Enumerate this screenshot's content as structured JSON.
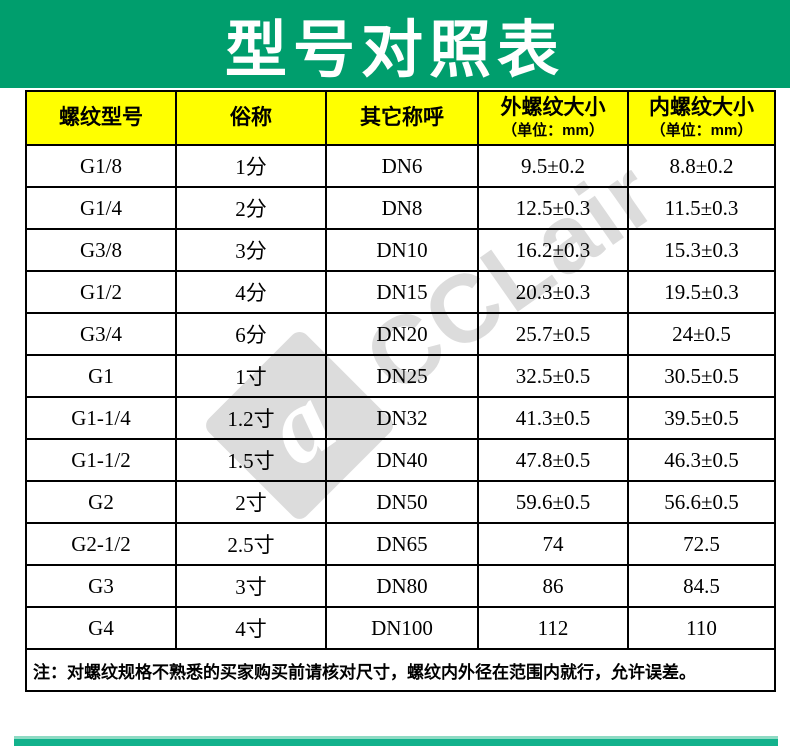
{
  "title": "型号对照表",
  "watermark": {
    "logo_letter": "a",
    "text": "CCLair"
  },
  "colors": {
    "banner_green": "#009E6D",
    "header_yellow": "#FFFF00",
    "bottom_bar_teal": "#12B28C",
    "watermark_gray": "#DCDCDC",
    "border_black": "#000000"
  },
  "table": {
    "headers": [
      {
        "label": "螺纹型号",
        "sub": ""
      },
      {
        "label": "俗称",
        "sub": ""
      },
      {
        "label": "其它称呼",
        "sub": ""
      },
      {
        "label": "外螺纹大小",
        "sub": "（单位：mm）"
      },
      {
        "label": "内螺纹大小",
        "sub": "（单位：mm）"
      }
    ],
    "rows": [
      [
        "G1/8",
        "1分",
        "DN6",
        "9.5±0.2",
        "8.8±0.2"
      ],
      [
        "G1/4",
        "2分",
        "DN8",
        "12.5±0.3",
        "11.5±0.3"
      ],
      [
        "G3/8",
        "3分",
        "DN10",
        "16.2±0.3",
        "15.3±0.3"
      ],
      [
        "G1/2",
        "4分",
        "DN15",
        "20.3±0.3",
        "19.5±0.3"
      ],
      [
        "G3/4",
        "6分",
        "DN20",
        "25.7±0.5",
        "24±0.5"
      ],
      [
        "G1",
        "1寸",
        "DN25",
        "32.5±0.5",
        "30.5±0.5"
      ],
      [
        "G1-1/4",
        "1.2寸",
        "DN32",
        "41.3±0.5",
        "39.5±0.5"
      ],
      [
        "G1-1/2",
        "1.5寸",
        "DN40",
        "47.8±0.5",
        "46.3±0.5"
      ],
      [
        "G2",
        "2寸",
        "DN50",
        "59.6±0.5",
        "56.6±0.5"
      ],
      [
        "G2-1/2",
        "2.5寸",
        "DN65",
        "74",
        "72.5"
      ],
      [
        "G3",
        "3寸",
        "DN80",
        "86",
        "84.5"
      ],
      [
        "G4",
        "4寸",
        "DN100",
        "112",
        "110"
      ]
    ],
    "note": "注：对螺纹规格不熟悉的买家购买前请核对尺寸，螺纹内外径在范围内就行，允许误差。"
  }
}
